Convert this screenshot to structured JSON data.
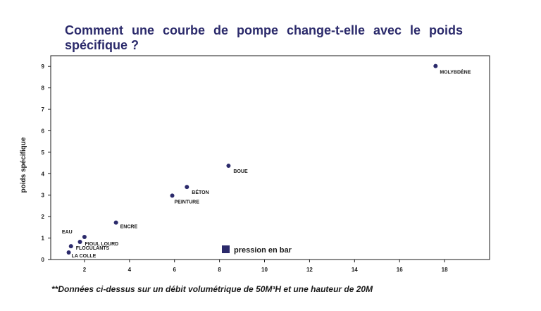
{
  "chart_data": {
    "type": "scatter",
    "title": "Comment une courbe de pompe change-t-elle avec le poids spécifique ?",
    "xlabel": "",
    "ylabel": "poids spécifique",
    "xlim": [
      0.5,
      20
    ],
    "ylim": [
      0,
      9.5
    ],
    "xticks": [
      2,
      4,
      6,
      8,
      10,
      12,
      14,
      16,
      18
    ],
    "yticks": [
      0,
      1,
      2,
      3,
      4,
      5,
      6,
      7,
      8,
      9
    ],
    "grid": false,
    "legend": {
      "position": "bottom-center",
      "entries": [
        "pression en bar"
      ]
    },
    "series": [
      {
        "name": "pression en bar",
        "color": "#2b2a6b",
        "points": [
          {
            "label": "LA COLLE",
            "x": 1.3,
            "y": 0.33
          },
          {
            "label": "FLOCULANTS",
            "x": 1.4,
            "y": 0.62
          },
          {
            "label": "FIOUL LOURD",
            "x": 1.8,
            "y": 0.82
          },
          {
            "label": "EAU",
            "x": 2.0,
            "y": 1.05
          },
          {
            "label": "ENCRE",
            "x": 3.4,
            "y": 1.72
          },
          {
            "label": "PEINTURE",
            "x": 5.9,
            "y": 2.98
          },
          {
            "label": "BÉTON",
            "x": 6.55,
            "y": 3.38
          },
          {
            "label": "BOUE",
            "x": 8.4,
            "y": 4.37
          },
          {
            "label": "MOLYBDÈNE",
            "x": 17.6,
            "y": 9.02
          }
        ]
      }
    ]
  },
  "footnote": "**Données ci-dessus sur un débit volumétrique de 50M³H et une hauteur de 20M"
}
